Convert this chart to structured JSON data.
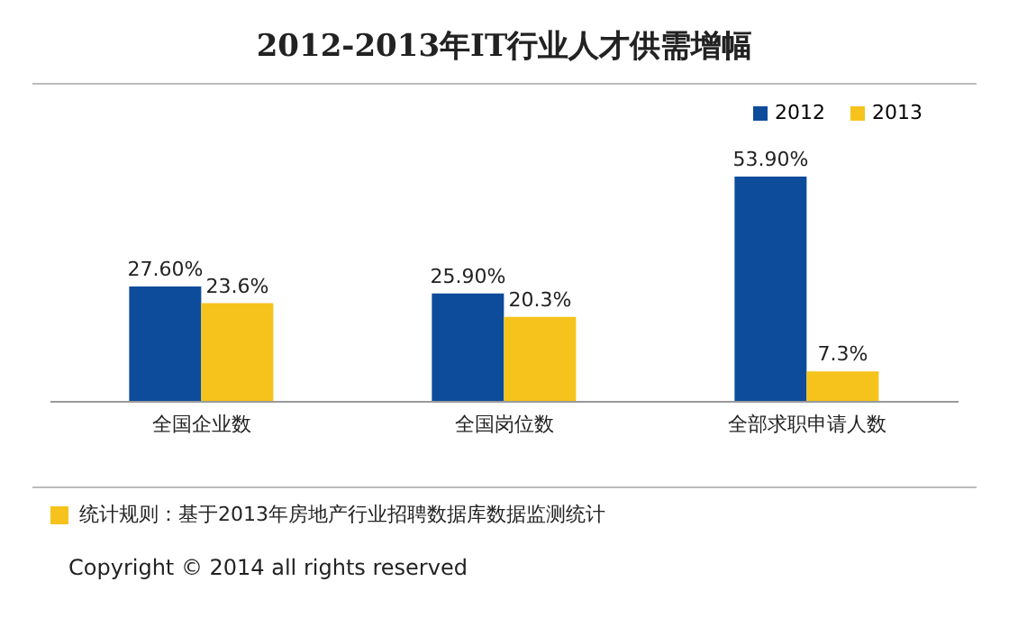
{
  "chart_data": {
    "type": "bar",
    "title": "2012-2013年IT行业人才供需增幅",
    "categories": [
      "全国企业数",
      "全国岗位数",
      "全部求职申请人数"
    ],
    "series": [
      {
        "name": "2012",
        "color": "#0d4c9b",
        "values": [
          27.6,
          25.9,
          53.9
        ],
        "value_labels": [
          "27.60%",
          "25.90%",
          "53.90%"
        ]
      },
      {
        "name": "2013",
        "color": "#f5c31c",
        "values": [
          23.6,
          20.3,
          7.3
        ],
        "value_labels": [
          "23.6%",
          "20.3%",
          "7.3%"
        ]
      }
    ],
    "legend": "top right",
    "grid": false,
    "annotations": [
      "统计规则：基于2013年房地产行业招聘数据库数据监测统计",
      "Copyright  ©  2014 all rights reserved"
    ]
  }
}
